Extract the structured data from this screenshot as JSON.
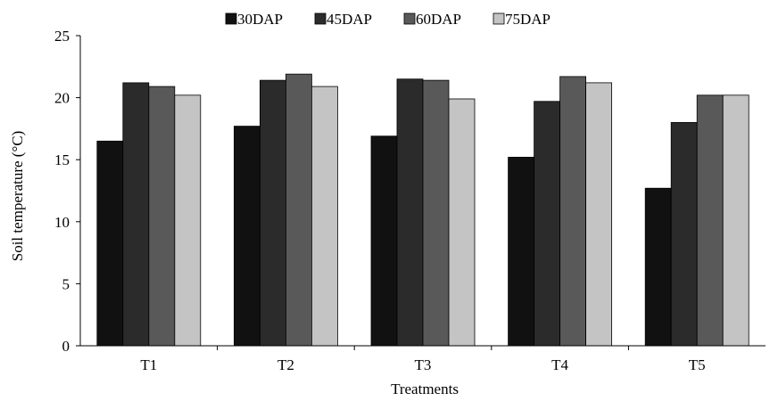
{
  "chart_data": {
    "type": "bar",
    "xlabel": "Treatments",
    "ylabel": "Soil temperature (°C)",
    "ylim": [
      0,
      25
    ],
    "yticks": [
      0,
      5,
      10,
      15,
      20,
      25
    ],
    "categories": [
      "T1",
      "T2",
      "T3",
      "T4",
      "T5"
    ],
    "legend_position": "top",
    "grid": false,
    "series": [
      {
        "name": "30DAP",
        "color": "#111111",
        "values": [
          16.5,
          17.7,
          16.9,
          15.2,
          12.7
        ]
      },
      {
        "name": "45DAP",
        "color": "#2b2b2b",
        "values": [
          21.2,
          21.4,
          21.5,
          19.7,
          18.0
        ]
      },
      {
        "name": "60DAP",
        "color": "#595959",
        "values": [
          20.9,
          21.9,
          21.4,
          21.7,
          20.2
        ]
      },
      {
        "name": "75DAP",
        "color": "#c4c4c4",
        "values": [
          20.2,
          20.9,
          19.9,
          21.2,
          20.2
        ]
      }
    ]
  }
}
